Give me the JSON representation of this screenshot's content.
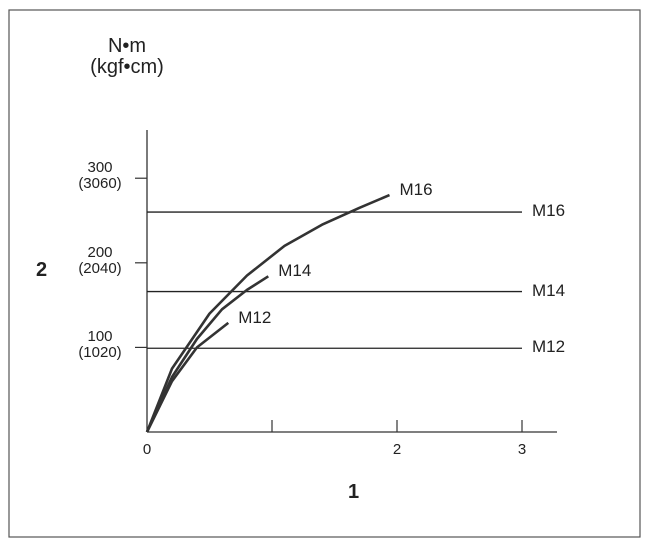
{
  "chart_data": {
    "type": "line",
    "y_unit_label": "N•m\n(kgf•cm)",
    "y_axis_label": "2",
    "x_axis_label": "1",
    "xlim": [
      0,
      3.28
    ],
    "ylim": [
      0,
      357
    ],
    "xticks": [
      0,
      {
        "value": 1,
        "label": null
      },
      2,
      3
    ],
    "yticks": [
      {
        "value": 100,
        "label": "100\n(1020)"
      },
      {
        "value": 200,
        "label": "200\n(2040)"
      },
      {
        "value": 300,
        "label": "300\n(3060)"
      }
    ],
    "color": "#333333",
    "series": [
      {
        "name": "M16",
        "x": [
          0,
          0.2,
          0.5,
          0.8,
          1.1,
          1.4,
          1.7,
          1.94
        ],
        "values": [
          0,
          75,
          140,
          185,
          220,
          245,
          265,
          280
        ]
      },
      {
        "name": "M14",
        "x": [
          0,
          0.2,
          0.4,
          0.6,
          0.8,
          0.97
        ],
        "values": [
          0,
          65,
          110,
          145,
          168,
          184
        ]
      },
      {
        "name": "M12",
        "x": [
          0,
          0.2,
          0.4,
          0.65
        ],
        "values": [
          0,
          60,
          100,
          129
        ]
      }
    ],
    "reference_lines": [
      {
        "label": "M16",
        "value": 260
      },
      {
        "label": "M14",
        "value": 166
      },
      {
        "label": "M12",
        "value": 99
      }
    ]
  }
}
